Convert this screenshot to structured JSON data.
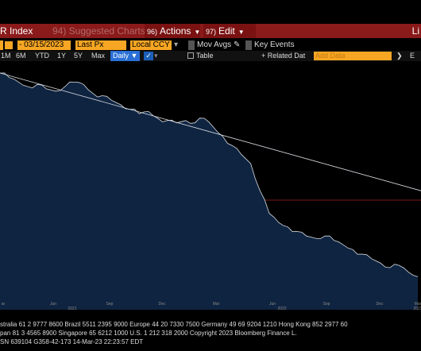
{
  "toolbar": {
    "title": "R Index",
    "suggested": "94) Suggested Charts",
    "actions_key": "96)",
    "actions_label": "Actions",
    "edit_key": "97)",
    "edit_label": "Edit",
    "right_text": "Li"
  },
  "controls": {
    "date_value": "- 03/15/2023",
    "price_field": "Last Px",
    "currency": "Local CCY",
    "mov_avgs": "Mov Avgs",
    "key_events": "Key Events"
  },
  "periods": {
    "items": [
      "1M",
      "6M",
      "YTD",
      "1Y",
      "5Y",
      "Max"
    ],
    "frequency": "Daily",
    "table_label": "Table",
    "related_data": "+ Related Dat",
    "add_data_placeholder": "Add Data",
    "more": "E"
  },
  "chart_data": {
    "type": "line",
    "x_labels": [
      "ar",
      "Jun",
      "Sep",
      "Dec",
      "Mar",
      "Jun",
      "Sep",
      "Dec",
      "Mar"
    ],
    "year_labels": [
      "2021",
      "2022",
      "2023"
    ],
    "series": [
      {
        "values": [
          100,
          98,
          96,
          94,
          95,
          93,
          92,
          94,
          96,
          95,
          91,
          90,
          88,
          86,
          84,
          82,
          83,
          80,
          79,
          78,
          79,
          78,
          80,
          76,
          72,
          68,
          64,
          60,
          48,
          38,
          34,
          32,
          30,
          28,
          27,
          28,
          26,
          24,
          22,
          20,
          18,
          16,
          14,
          15,
          12,
          10
        ]
      },
      {
        "values": [
          100,
          48
        ]
      }
    ],
    "colors": {
      "line": "#d9dde4",
      "fill": "#0f2440",
      "reference": "#7a1a1a"
    }
  },
  "footer": {
    "line1": "stralia 61 2 9777 8600 Brazil 5511 2395 9000 Europe 44 20 7330 7500 Germany 49 69 9204 1210 Hong Kong 852 2977 60",
    "line2": "pan 81 3 4565 8900        Singapore 65 6212 1000         U.S. 1 212 318 2000          Copyright 2023 Bloomberg Finance L.",
    "line3": "SN 639104 G358-42-173 14-Mar-23 22:23:57 EDT"
  }
}
